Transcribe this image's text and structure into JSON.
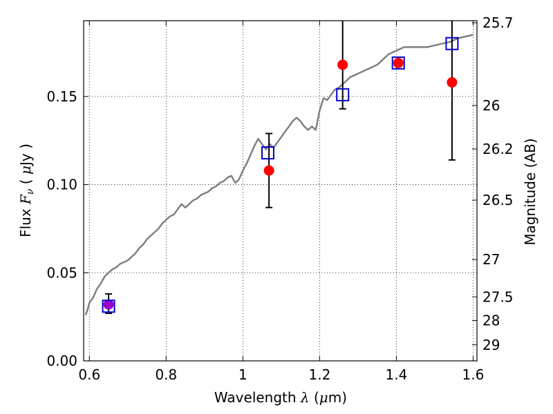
{
  "chart_data": {
    "type": "scatter",
    "xlabel": "Wavelength  λ (μm)",
    "ylabel": "Flux  Fν  ( μJy )",
    "y2label": "Magnitude (AB)",
    "xlim": [
      0.585,
      1.61
    ],
    "ylim": [
      0.0,
      0.193
    ],
    "grid": true,
    "grid_style": "dotted",
    "x_ticks": [
      0.6,
      0.8,
      1.0,
      1.2,
      1.4,
      1.6
    ],
    "x_tick_labels": [
      "0.6",
      "0.8",
      "1",
      "1.2",
      "1.4",
      "1.6"
    ],
    "y_ticks": [
      0.0,
      0.05,
      0.1,
      0.15
    ],
    "y_tick_labels": [
      "0.00",
      "0.05",
      "0.10",
      "0.15"
    ],
    "y2_ticks": [
      {
        "label": "25.7",
        "flux": 0.1918
      },
      {
        "label": "26",
        "flux": 0.1449
      },
      {
        "label": "26.2",
        "flux": 0.1202
      },
      {
        "label": "26.5",
        "flux": 0.0912
      },
      {
        "label": "27",
        "flux": 0.0575
      },
      {
        "label": "27.5",
        "flux": 0.0363
      },
      {
        "label": "28",
        "flux": 0.0229
      },
      {
        "label": "29",
        "flux": 0.0091
      }
    ],
    "series": [
      {
        "kind": "model_sed",
        "color": "#808080",
        "points": [
          [
            0.59,
            0.026
          ],
          [
            0.595,
            0.029
          ],
          [
            0.6,
            0.033
          ],
          [
            0.61,
            0.036
          ],
          [
            0.62,
            0.041
          ],
          [
            0.63,
            0.044
          ],
          [
            0.64,
            0.048
          ],
          [
            0.65,
            0.05
          ],
          [
            0.66,
            0.052
          ],
          [
            0.67,
            0.053
          ],
          [
            0.68,
            0.055
          ],
          [
            0.69,
            0.056
          ],
          [
            0.7,
            0.057
          ],
          [
            0.71,
            0.059
          ],
          [
            0.72,
            0.061
          ],
          [
            0.73,
            0.064
          ],
          [
            0.74,
            0.066
          ],
          [
            0.75,
            0.069
          ],
          [
            0.76,
            0.071
          ],
          [
            0.77,
            0.073
          ],
          [
            0.78,
            0.075
          ],
          [
            0.79,
            0.078
          ],
          [
            0.8,
            0.08
          ],
          [
            0.81,
            0.082
          ],
          [
            0.82,
            0.083
          ],
          [
            0.83,
            0.086
          ],
          [
            0.84,
            0.089
          ],
          [
            0.85,
            0.087
          ],
          [
            0.86,
            0.089
          ],
          [
            0.87,
            0.091
          ],
          [
            0.88,
            0.092
          ],
          [
            0.89,
            0.094
          ],
          [
            0.9,
            0.095
          ],
          [
            0.91,
            0.096
          ],
          [
            0.92,
            0.098
          ],
          [
            0.93,
            0.099
          ],
          [
            0.94,
            0.101
          ],
          [
            0.95,
            0.102
          ],
          [
            0.96,
            0.104
          ],
          [
            0.97,
            0.105
          ],
          [
            0.98,
            0.101
          ],
          [
            0.99,
            0.103
          ],
          [
            1.0,
            0.108
          ],
          [
            1.01,
            0.112
          ],
          [
            1.02,
            0.117
          ],
          [
            1.03,
            0.122
          ],
          [
            1.04,
            0.126
          ],
          [
            1.05,
            0.123
          ],
          [
            1.06,
            0.12
          ],
          [
            1.07,
            0.123
          ],
          [
            1.08,
            0.121
          ],
          [
            1.09,
            0.124
          ],
          [
            1.1,
            0.127
          ],
          [
            1.11,
            0.13
          ],
          [
            1.12,
            0.133
          ],
          [
            1.13,
            0.136
          ],
          [
            1.14,
            0.138
          ],
          [
            1.15,
            0.136
          ],
          [
            1.16,
            0.133
          ],
          [
            1.17,
            0.131
          ],
          [
            1.18,
            0.133
          ],
          [
            1.19,
            0.131
          ],
          [
            1.2,
            0.142
          ],
          [
            1.21,
            0.149
          ],
          [
            1.22,
            0.148
          ],
          [
            1.23,
            0.151
          ],
          [
            1.24,
            0.154
          ],
          [
            1.25,
            0.155
          ],
          [
            1.26,
            0.157
          ],
          [
            1.27,
            0.159
          ],
          [
            1.28,
            0.161
          ],
          [
            1.29,
            0.162
          ],
          [
            1.3,
            0.163
          ],
          [
            1.31,
            0.164
          ],
          [
            1.32,
            0.165
          ],
          [
            1.33,
            0.166
          ],
          [
            1.34,
            0.167
          ],
          [
            1.35,
            0.168
          ],
          [
            1.36,
            0.17
          ],
          [
            1.37,
            0.172
          ],
          [
            1.38,
            0.174
          ],
          [
            1.39,
            0.175
          ],
          [
            1.4,
            0.176
          ],
          [
            1.41,
            0.177
          ],
          [
            1.42,
            0.178
          ],
          [
            1.44,
            0.178
          ],
          [
            1.46,
            0.178
          ],
          [
            1.48,
            0.178
          ],
          [
            1.5,
            0.179
          ],
          [
            1.52,
            0.18
          ],
          [
            1.54,
            0.181
          ],
          [
            1.56,
            0.183
          ],
          [
            1.58,
            0.184
          ],
          [
            1.6,
            0.185
          ]
        ]
      },
      {
        "kind": "model_photometry",
        "marker": "open-square",
        "color": "#0000cc",
        "points": [
          [
            0.65,
            0.031
          ],
          [
            1.065,
            0.118
          ],
          [
            1.26,
            0.151
          ],
          [
            1.405,
            0.169
          ],
          [
            1.545,
            0.18
          ]
        ]
      },
      {
        "kind": "observed",
        "marker": "filled-circle",
        "color": "#ff0000",
        "points": [
          {
            "x": 0.65,
            "y": 0.032,
            "err_low": 0.027,
            "err_high": 0.038
          },
          {
            "x": 1.068,
            "y": 0.108,
            "err_low": 0.087,
            "err_high": 0.129
          },
          {
            "x": 1.26,
            "y": 0.168,
            "err_low": 0.143,
            "err_high": 0.193
          },
          {
            "x": 1.405,
            "y": 0.169
          },
          {
            "x": 1.545,
            "y": 0.158,
            "err_low": 0.114,
            "err_high": 0.193
          }
        ]
      }
    ],
    "first_point_color": "#9900cc"
  }
}
